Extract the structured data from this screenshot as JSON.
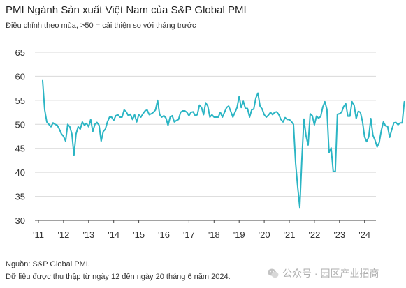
{
  "header": {
    "title": "PMI Ngành Sản xuất Việt Nam của S&P Global PMI",
    "subtitle": "Điều chỉnh theo mùa, >50 = cải thiện so với tháng trước"
  },
  "footer": {
    "source": "Nguồn: S&P Global PMI.",
    "note": "Dữ liệu được thu thập từ ngày 12 đến ngày 20 tháng 6 năm 2024."
  },
  "watermark": {
    "text": "公众号 · 园区产业招商"
  },
  "colors": {
    "line": "#2bb5c4",
    "grid": "#d9d9d9",
    "axis": "#444444"
  },
  "chart_data": {
    "type": "line",
    "title": "PMI Ngành Sản xuất Việt Nam của S&P Global PMI",
    "subtitle": "Điều chỉnh theo mùa, >50 = cải thiện so với tháng trước",
    "xlabel": "",
    "ylabel": "",
    "ylim": [
      30,
      65
    ],
    "y_ticks": [
      30,
      35,
      40,
      45,
      50,
      55,
      60,
      65
    ],
    "x_tick_labels": [
      "'11",
      "'12",
      "'13",
      "'14",
      "'15",
      "'16",
      "'17",
      "'18",
      "'19",
      "'20",
      "'21",
      "'22",
      "'23",
      "'24"
    ],
    "grid": "horizontal",
    "legend": "none",
    "series": [
      {
        "x_start": "2011-03",
        "frequency": "monthly",
        "values": [
          59.1,
          53.0,
          50.5,
          50.0,
          49.5,
          50.3,
          50.0,
          49.8,
          49.0,
          48.0,
          47.5,
          46.5,
          50.0,
          49.5,
          48.0,
          43.6,
          48.0,
          49.5,
          49.0,
          50.5,
          49.8,
          50.2,
          49.5,
          51.0,
          48.5,
          50.0,
          50.4,
          49.8,
          46.5,
          48.5,
          49.0,
          50.5,
          51.5,
          51.5,
          50.8,
          51.8,
          52.0,
          51.5,
          51.5,
          53.0,
          52.6,
          51.8,
          52.1,
          51.0,
          52.0,
          50.5,
          52.0,
          51.5,
          52.2,
          52.8,
          53.0,
          52.0,
          52.2,
          52.5,
          53.0,
          55.0,
          52.0,
          51.5,
          51.8,
          51.3,
          49.8,
          51.5,
          51.8,
          50.5,
          50.8,
          51.0,
          52.5,
          52.8,
          52.8,
          52.5,
          51.8,
          52.5,
          52.6,
          51.8,
          52.0,
          54.0,
          53.5,
          52.0,
          54.5,
          53.8,
          51.5,
          52.0,
          51.5,
          51.5,
          51.5,
          52.5,
          51.5,
          52.5,
          53.5,
          53.8,
          52.7,
          51.5,
          52.5,
          53.5,
          55.8,
          53.5,
          54.8,
          53.3,
          53.3,
          51.5,
          53.0,
          53.2,
          55.5,
          56.5,
          53.8,
          53.2,
          52.0,
          51.5,
          51.9,
          52.5,
          52.0,
          52.5,
          52.6,
          52.0,
          51.0,
          50.5,
          51.4,
          51.0,
          51.0,
          50.6,
          50.0,
          42.0,
          37.0,
          32.7,
          42.7,
          51.1,
          47.6,
          45.7,
          52.2,
          51.8,
          49.9,
          51.7,
          51.3,
          51.6,
          53.6,
          54.7,
          53.1,
          44.1,
          45.1,
          40.2,
          40.2,
          52.1,
          52.2,
          52.5,
          53.7,
          54.3,
          51.7,
          51.7,
          54.7,
          54.0,
          51.2,
          52.7,
          52.5,
          50.6,
          47.4,
          46.4,
          47.4,
          51.2,
          47.7,
          46.7,
          45.3,
          46.2,
          48.7,
          50.5,
          49.7,
          49.6,
          47.3,
          48.9,
          50.3,
          50.4,
          49.9,
          50.3,
          50.3,
          54.7
        ]
      }
    ]
  }
}
